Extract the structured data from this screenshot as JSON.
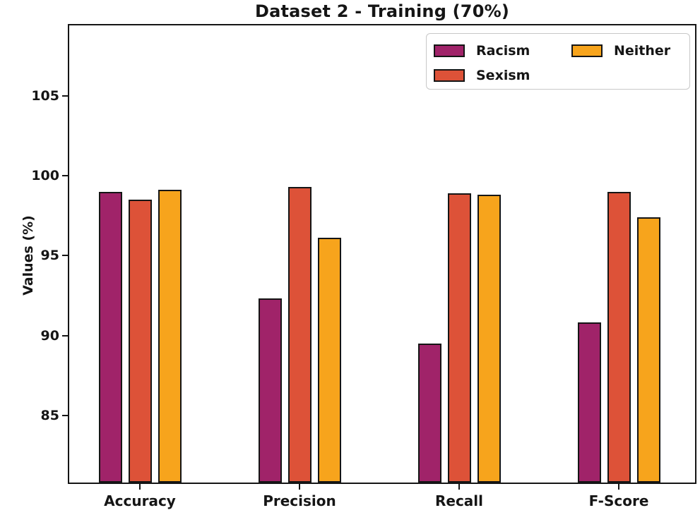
{
  "chart_data": {
    "type": "bar",
    "title": "Dataset 2 - Training (70%)",
    "ylabel": "Values (%)",
    "xlabel": "",
    "categories": [
      "Accuracy",
      "Precision",
      "Recall",
      "F-Score"
    ],
    "series": [
      {
        "name": "Racism",
        "color": "#A02369",
        "values": [
          99.0,
          92.3,
          89.5,
          90.8
        ]
      },
      {
        "name": "Sexism",
        "color": "#DD5238",
        "values": [
          98.5,
          99.3,
          98.9,
          99.0
        ]
      },
      {
        "name": "Neither",
        "color": "#F7A41C",
        "values": [
          99.1,
          96.1,
          98.8,
          97.4
        ]
      }
    ],
    "yticks": [
      85,
      90,
      95,
      100,
      105
    ],
    "ylim": [
      80.8,
      109.4
    ],
    "grid": false,
    "legend_position": "upper right",
    "bar_edge_color": "#151515",
    "background_color": "#ffffff"
  }
}
